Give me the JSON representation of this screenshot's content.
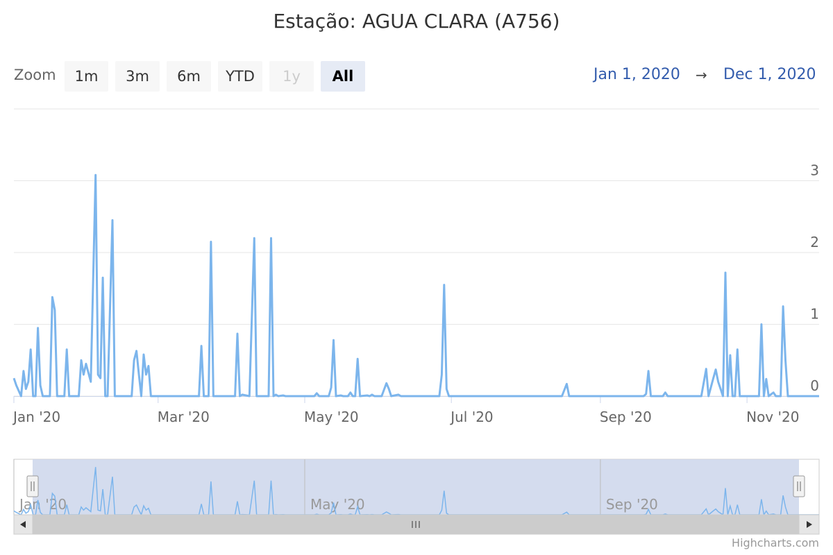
{
  "title": "Estação: AGUA CLARA (A756)",
  "zoom": {
    "label": "Zoom",
    "buttons": [
      {
        "label": "1m",
        "state": "normal"
      },
      {
        "label": "3m",
        "state": "normal"
      },
      {
        "label": "6m",
        "state": "normal"
      },
      {
        "label": "YTD",
        "state": "normal"
      },
      {
        "label": "1y",
        "state": "disabled"
      },
      {
        "label": "All",
        "state": "active"
      }
    ]
  },
  "range": {
    "from": "Jan 1, 2020",
    "arrow": "→",
    "to": "Dec 1, 2020"
  },
  "credits": "Highcharts.com",
  "colors": {
    "series": "#7cb5ec",
    "navigator_mask": "#ccd6eb",
    "gridline": "#e6e6e6",
    "axis_text": "#666666"
  },
  "chart_data": {
    "type": "line",
    "title": "Estação: AGUA CLARA (A756)",
    "xlabel": "",
    "ylabel": "",
    "x_range": [
      "2020-01-01",
      "2020-12-01"
    ],
    "ylim": [
      0,
      4
    ],
    "y_ticks": [
      "0",
      "1",
      "2",
      "3"
    ],
    "x_ticks": [
      {
        "date": "2020-01-01",
        "label": "Jan '20"
      },
      {
        "date": "2020-03-01",
        "label": "Mar '20"
      },
      {
        "date": "2020-05-01",
        "label": "May '20"
      },
      {
        "date": "2020-07-01",
        "label": "Jul '20"
      },
      {
        "date": "2020-09-01",
        "label": "Sep '20"
      },
      {
        "date": "2020-11-01",
        "label": "Nov '20"
      }
    ],
    "navigator_ticks": [
      {
        "date": "2020-01-01",
        "label": "Jan '20"
      },
      {
        "date": "2020-05-01",
        "label": "May '20"
      },
      {
        "date": "2020-09-01",
        "label": "Sep '20"
      }
    ],
    "grid": true,
    "legend": "none",
    "series": [
      {
        "points": [
          [
            "2020-01-01",
            0.25
          ],
          [
            "2020-01-02",
            0.15
          ],
          [
            "2020-01-04",
            0
          ],
          [
            "2020-01-05",
            0.35
          ],
          [
            "2020-01-06",
            0.1
          ],
          [
            "2020-01-07",
            0.2
          ],
          [
            "2020-01-08",
            0.65
          ],
          [
            "2020-01-09",
            0
          ],
          [
            "2020-01-10",
            0
          ],
          [
            "2020-01-11",
            0.95
          ],
          [
            "2020-01-12",
            0.15
          ],
          [
            "2020-01-13",
            0
          ],
          [
            "2020-01-16",
            0
          ],
          [
            "2020-01-17",
            1.38
          ],
          [
            "2020-01-18",
            1.2
          ],
          [
            "2020-01-19",
            0
          ],
          [
            "2020-01-22",
            0
          ],
          [
            "2020-01-23",
            0.65
          ],
          [
            "2020-01-24",
            0
          ],
          [
            "2020-01-28",
            0
          ],
          [
            "2020-01-29",
            0.5
          ],
          [
            "2020-01-30",
            0.3
          ],
          [
            "2020-01-31",
            0.45
          ],
          [
            "2020-02-02",
            0.2
          ],
          [
            "2020-02-04",
            3.08
          ],
          [
            "2020-02-05",
            0.3
          ],
          [
            "2020-02-06",
            0.25
          ],
          [
            "2020-02-07",
            1.65
          ],
          [
            "2020-02-08",
            0
          ],
          [
            "2020-02-09",
            0
          ],
          [
            "2020-02-11",
            2.45
          ],
          [
            "2020-02-12",
            0
          ],
          [
            "2020-02-19",
            0
          ],
          [
            "2020-02-20",
            0.5
          ],
          [
            "2020-02-21",
            0.63
          ],
          [
            "2020-02-22",
            0.3
          ],
          [
            "2020-02-23",
            0
          ],
          [
            "2020-02-24",
            0.58
          ],
          [
            "2020-02-25",
            0.3
          ],
          [
            "2020-02-26",
            0.42
          ],
          [
            "2020-02-27",
            0
          ],
          [
            "2020-03-18",
            0
          ],
          [
            "2020-03-19",
            0.7
          ],
          [
            "2020-03-20",
            0
          ],
          [
            "2020-03-22",
            0
          ],
          [
            "2020-03-23",
            2.15
          ],
          [
            "2020-03-24",
            0
          ],
          [
            "2020-04-02",
            0
          ],
          [
            "2020-04-03",
            0.87
          ],
          [
            "2020-04-04",
            0
          ],
          [
            "2020-04-05",
            0.02
          ],
          [
            "2020-04-08",
            0
          ],
          [
            "2020-04-10",
            2.2
          ],
          [
            "2020-04-11",
            0
          ],
          [
            "2020-04-16",
            0
          ],
          [
            "2020-04-17",
            2.2
          ],
          [
            "2020-04-18",
            0
          ],
          [
            "2020-04-19",
            0.02
          ],
          [
            "2020-04-20",
            0
          ],
          [
            "2020-04-22",
            0.01
          ],
          [
            "2020-04-23",
            0
          ],
          [
            "2020-05-05",
            0
          ],
          [
            "2020-05-06",
            0.04
          ],
          [
            "2020-05-07",
            0
          ],
          [
            "2020-05-11",
            0
          ],
          [
            "2020-05-12",
            0.12
          ],
          [
            "2020-05-13",
            0.78
          ],
          [
            "2020-05-14",
            0
          ],
          [
            "2020-05-16",
            0.01
          ],
          [
            "2020-05-17",
            0
          ],
          [
            "2020-05-19",
            0
          ],
          [
            "2020-05-20",
            0.05
          ],
          [
            "2020-05-21",
            0
          ],
          [
            "2020-05-22",
            0
          ],
          [
            "2020-05-23",
            0.52
          ],
          [
            "2020-05-24",
            0
          ],
          [
            "2020-05-27",
            0.01
          ],
          [
            "2020-05-28",
            0
          ],
          [
            "2020-05-29",
            0.02
          ],
          [
            "2020-05-30",
            0
          ],
          [
            "2020-06-02",
            0
          ],
          [
            "2020-06-04",
            0.18
          ],
          [
            "2020-06-05",
            0.1
          ],
          [
            "2020-06-06",
            0
          ],
          [
            "2020-06-09",
            0.02
          ],
          [
            "2020-06-10",
            0
          ],
          [
            "2020-06-26",
            0
          ],
          [
            "2020-06-27",
            0.3
          ],
          [
            "2020-06-28",
            1.55
          ],
          [
            "2020-06-29",
            0.1
          ],
          [
            "2020-06-30",
            0
          ],
          [
            "2020-08-16",
            0
          ],
          [
            "2020-08-18",
            0.17
          ],
          [
            "2020-08-19",
            0
          ],
          [
            "2020-09-19",
            0
          ],
          [
            "2020-09-20",
            0.03
          ],
          [
            "2020-09-21",
            0.35
          ],
          [
            "2020-09-22",
            0
          ],
          [
            "2020-09-27",
            0
          ],
          [
            "2020-09-28",
            0.05
          ],
          [
            "2020-09-29",
            0
          ],
          [
            "2020-10-13",
            0
          ],
          [
            "2020-10-15",
            0.38
          ],
          [
            "2020-10-16",
            0
          ],
          [
            "2020-10-18",
            0.25
          ],
          [
            "2020-10-19",
            0.37
          ],
          [
            "2020-10-20",
            0.2
          ],
          [
            "2020-10-22",
            0
          ],
          [
            "2020-10-23",
            1.72
          ],
          [
            "2020-10-24",
            0
          ],
          [
            "2020-10-25",
            0.57
          ],
          [
            "2020-10-26",
            0
          ],
          [
            "2020-10-27",
            0
          ],
          [
            "2020-10-28",
            0.65
          ],
          [
            "2020-10-29",
            0
          ],
          [
            "2020-11-06",
            0
          ],
          [
            "2020-11-07",
            1.0
          ],
          [
            "2020-11-08",
            0
          ],
          [
            "2020-11-09",
            0.24
          ],
          [
            "2020-11-10",
            0
          ],
          [
            "2020-11-12",
            0.05
          ],
          [
            "2020-11-13",
            0
          ],
          [
            "2020-11-15",
            0
          ],
          [
            "2020-11-16",
            1.25
          ],
          [
            "2020-11-17",
            0.5
          ],
          [
            "2020-11-18",
            0
          ],
          [
            "2020-12-01",
            0
          ]
        ]
      }
    ]
  }
}
